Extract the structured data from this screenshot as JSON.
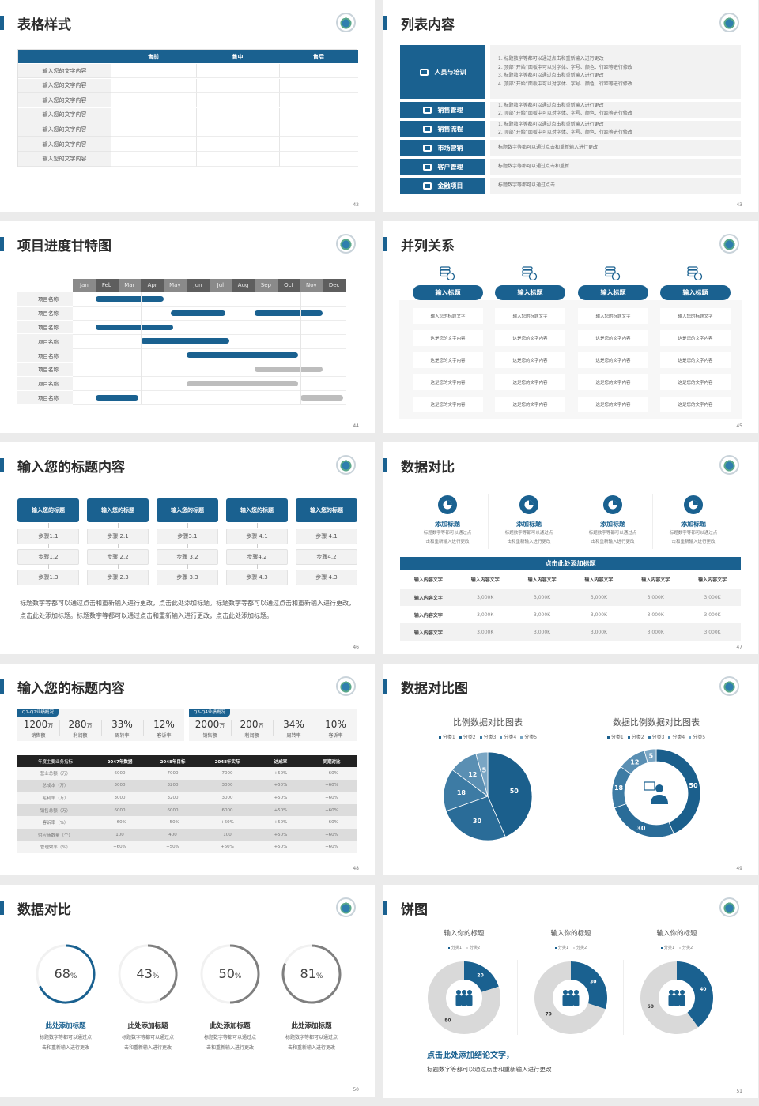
{
  "colors": {
    "accent": "#1a6190",
    "gray_bar": "#bdbdbd",
    "dark_header": "#222222"
  },
  "s42": {
    "title": "表格样式",
    "page": "42",
    "headers": [
      "",
      "售前",
      "售中",
      "售后"
    ],
    "rows": [
      "输入您的文字内容",
      "输入您的文字内容",
      "输入您的文字内容",
      "输入您的文字内容",
      "输入您的文字内容",
      "输入您的文字内容",
      "输入您的文字内容"
    ]
  },
  "s43": {
    "title": "列表内容",
    "page": "43",
    "items": [
      {
        "label": "人员与培训",
        "icon": "presentation-icon",
        "lines": [
          "1.   标题数字等都可以通过点击和重新输入进行更改",
          "2.   顶部“开始”面板中可以对字体、字号、颜色、行距等进行修改",
          "3.   标题数字等都可以通过点击和重新输入进行更改",
          "4.   顶部“开始”面板中可以对字体、字号、颜色、行距等进行修改"
        ]
      },
      {
        "label": "销售管理",
        "icon": "user-gear-icon",
        "lines": [
          "1.   标题数字等都可以通过点击和重新输入进行更改",
          "2.   顶部“开始”面板中可以对字体、字号、颜色、行距等进行修改"
        ]
      },
      {
        "label": "销售流程",
        "icon": "cycle-icon",
        "lines": [
          "1.   标题数字等都可以通过点击和重新输入进行更改",
          "2.   顶部“开始”面板中可以对字体、字号、颜色、行距等进行修改"
        ]
      },
      {
        "label": "市场营销",
        "icon": "bar-chart-icon",
        "lines": [
          "标题数字等都可以通过点击和重新输入进行更改"
        ]
      },
      {
        "label": "客户管理",
        "icon": "users-icon",
        "lines": [
          "标题数字等都可以通过点击和重新"
        ]
      },
      {
        "label": "金融项目",
        "icon": "money-hand-icon",
        "lines": [
          "标题数字等都可以通过点击"
        ]
      }
    ]
  },
  "s44": {
    "title": "项目进度甘特图",
    "page": "44",
    "months": [
      "Jan",
      "Feb",
      "Mar",
      "Apr",
      "May",
      "Jun",
      "Jul",
      "Aug",
      "Sep",
      "Oct",
      "Nov",
      "Dec"
    ],
    "tasks": [
      {
        "name": "项目名称",
        "bars": [
          {
            "start": 1,
            "end": 4,
            "status": "active"
          }
        ]
      },
      {
        "name": "项目名称",
        "bars": [
          {
            "start": 4.3,
            "end": 6.7,
            "status": "active"
          },
          {
            "start": 8,
            "end": 11,
            "status": "active"
          }
        ]
      },
      {
        "name": "项目名称",
        "bars": [
          {
            "start": 1,
            "end": 4.4,
            "status": "active"
          }
        ]
      },
      {
        "name": "项目名称",
        "bars": [
          {
            "start": 3,
            "end": 6.9,
            "status": "active"
          }
        ]
      },
      {
        "name": "项目名称",
        "bars": [
          {
            "start": 5,
            "end": 9.9,
            "status": "active"
          }
        ]
      },
      {
        "name": "项目名称",
        "bars": [
          {
            "start": 8,
            "end": 11,
            "status": "planned"
          }
        ]
      },
      {
        "name": "项目名称",
        "bars": [
          {
            "start": 5,
            "end": 9.9,
            "status": "planned"
          }
        ]
      },
      {
        "name": "项目名称",
        "bars": [
          {
            "start": 1,
            "end": 2.9,
            "status": "active"
          },
          {
            "start": 10,
            "end": 11.9,
            "status": "planned"
          }
        ]
      }
    ]
  },
  "s45": {
    "title": "并列关系",
    "page": "45",
    "columns": [
      {
        "title": "输入标题",
        "rows": [
          "输入您的标题文字",
          "这是您的文字内容",
          "这是您的文字内容",
          "这是您的文字内容",
          "这是您的文字内容"
        ]
      },
      {
        "title": "输入标题",
        "rows": [
          "输入您的标题文字",
          "这是您的文字内容",
          "这是您的文字内容",
          "这是您的文字内容",
          "这是您的文字内容"
        ]
      },
      {
        "title": "输入标题",
        "rows": [
          "输入您的标题文字",
          "这是您的文字内容",
          "这是您的文字内容",
          "这是您的文字内容",
          "这是您的文字内容"
        ]
      },
      {
        "title": "输入标题",
        "rows": [
          "输入您的标题文字",
          "这是您的文字内容",
          "这是您的文字内容",
          "这是您的文字内容",
          "这是您的文字内容"
        ]
      }
    ]
  },
  "s46": {
    "title": "输入您的标题内容",
    "page": "46",
    "columns": [
      {
        "title": "输入您的标题",
        "steps": [
          "步骤1.1",
          "步骤1.2",
          "步骤1.3"
        ]
      },
      {
        "title": "输入您的标题",
        "steps": [
          "步骤 2.1",
          "步骤 2.2",
          "步骤 2.3"
        ]
      },
      {
        "title": "输入您的标题",
        "steps": [
          "步骤3.1",
          "步骤 3.2",
          "步骤 3.3"
        ]
      },
      {
        "title": "输入您的标题",
        "steps": [
          "步骤 4.1",
          "步骤4.2",
          "步骤 4.3"
        ]
      },
      {
        "title": "输入您的标题",
        "steps": [
          "步骤 4.1",
          "步骤4.2",
          "步骤 4.3"
        ]
      }
    ],
    "paragraph": "标题数字等都可以通过点击和重新输入进行更改，点击此处添加标题。标题数字等都可以通过点击和重新输入进行更改，点击此处添加标题。标题数字等都可以通过点击和重新输入进行更改，点击此处添加标题。"
  },
  "s47": {
    "title": "数据对比",
    "page": "47",
    "features": [
      {
        "title": "添加标题",
        "desc1": "标题数字等都可以通过点",
        "desc2": "击和重新输入进行更改"
      },
      {
        "title": "添加标题",
        "desc1": "标题数字等都可以通过点",
        "desc2": "击和重新输入进行更改"
      },
      {
        "title": "添加标题",
        "desc1": "标题数字等都可以通过点",
        "desc2": "击和重新输入进行更改"
      },
      {
        "title": "添加标题",
        "desc1": "标题数字等都可以通过点",
        "desc2": "击和重新输入进行更改"
      }
    ],
    "table_title": "点击此处添加标题",
    "headers": [
      "输入内容文字",
      "输入内容文字",
      "输入内容文字",
      "输入内容文字",
      "输入内容文字",
      "输入内容文字"
    ],
    "rows": [
      [
        "输入内容文字",
        "3,000K",
        "3,000K",
        "3,000K",
        "3,000K",
        "3,000K"
      ],
      [
        "输入内容文字",
        "3,000K",
        "3,000K",
        "3,000K",
        "3,000K",
        "3,000K"
      ],
      [
        "输入内容文字",
        "3,000K",
        "3,000K",
        "3,000K",
        "3,000K",
        "3,000K"
      ]
    ]
  },
  "s48": {
    "title": "输入您的标题内容",
    "page": "48",
    "groups": [
      {
        "tag": "Q1-Q2业绩概况",
        "kpis": [
          {
            "value": "1200",
            "unit": "万",
            "label": "销售额"
          },
          {
            "value": "280",
            "unit": "万",
            "label": "利润额"
          },
          {
            "value": "33%",
            "unit": "",
            "label": "周转率"
          },
          {
            "value": "12%",
            "unit": "",
            "label": "客诉率"
          }
        ]
      },
      {
        "tag": "Q3-Q4业绩概况",
        "kpis": [
          {
            "value": "2000",
            "unit": "万",
            "label": "销售额"
          },
          {
            "value": "200",
            "unit": "万",
            "label": "利润额"
          },
          {
            "value": "34%",
            "unit": "",
            "label": "周转率"
          },
          {
            "value": "10%",
            "unit": "",
            "label": "客诉率"
          }
        ]
      }
    ],
    "headers": [
      "年度主要业务指标",
      "2047年数据",
      "2048年目标",
      "2048年实际",
      "达成率",
      "同期对比"
    ],
    "rows": [
      [
        "营业总额（万）",
        "6000",
        "7000",
        "7000",
        "+50%",
        "+60%"
      ],
      [
        "总成本（万）",
        "3000",
        "3200",
        "3000",
        "+50%",
        "+60%"
      ],
      [
        "毛利率（万）",
        "3000",
        "3200",
        "3000",
        "+50%",
        "+60%"
      ],
      [
        "销售总额（万）",
        "6000",
        "6000",
        "6000",
        "+50%",
        "+60%"
      ],
      [
        "客诉率（%）",
        "+60%",
        "+50%",
        "+60%",
        "+50%",
        "+60%"
      ],
      [
        "供应商数量（个）",
        "100",
        "400",
        "100",
        "+50%",
        "+60%"
      ],
      [
        "管理效率（%）",
        "+60%",
        "+50%",
        "+60%",
        "+50%",
        "+60%"
      ]
    ]
  },
  "s49": {
    "title": "数据对比图",
    "page": "49"
  },
  "s50": {
    "title": "数据对比",
    "page": "50",
    "rings": [
      {
        "value": 68,
        "label": "68",
        "unit": "%",
        "title": "此处添加标题",
        "desc1": "标题数字等都可以通过点",
        "desc2": "击和重新输入进行更改",
        "highlight": true
      },
      {
        "value": 43,
        "label": "43",
        "unit": "%",
        "title": "此处添加标题",
        "desc1": "标题数字等都可以通过点",
        "desc2": "击和重新输入进行更改",
        "highlight": false
      },
      {
        "value": 50,
        "label": "50",
        "unit": "%",
        "title": "此处添加标题",
        "desc1": "标题数字等都可以通过点",
        "desc2": "击和重新输入进行更改",
        "highlight": false
      },
      {
        "value": 81,
        "label": "81",
        "unit": "%",
        "title": "此处添加标题",
        "desc1": "标题数字等都可以通过点",
        "desc2": "击和重新输入进行更改",
        "highlight": false
      }
    ]
  },
  "s51": {
    "title": "饼图",
    "page": "51",
    "conclusion": "点击此处添加结论文字，",
    "conclusion_desc": "标题数字等都可以通过点击和重新输入进行更改"
  },
  "chart_data": [
    {
      "type": "pie",
      "title": "比例数据对比图表",
      "categories": [
        "分类1",
        "分类2",
        "分类3",
        "分类4",
        "分类5"
      ],
      "values": [
        50,
        30,
        18,
        12,
        5
      ],
      "legend": "top",
      "colors": [
        "#1b5f8c",
        "#2a6c98",
        "#3d7ba4",
        "#5a8fb3",
        "#7aa6c4"
      ]
    },
    {
      "type": "pie",
      "subtype": "donut",
      "title": "数据比例数据对比图表",
      "categories": [
        "分类1",
        "分类2",
        "分类3",
        "分类4",
        "分类5"
      ],
      "values": [
        50,
        30,
        18,
        12,
        5
      ],
      "legend": "top",
      "colors": [
        "#1b5f8c",
        "#2a6c98",
        "#3d7ba4",
        "#5a8fb3",
        "#7aa6c4"
      ],
      "center_icon": "consultant-icon"
    },
    {
      "type": "pie",
      "subtype": "donut",
      "title": "输入你的标题",
      "categories": [
        "分类1",
        "分类2"
      ],
      "values": [
        20,
        80
      ],
      "legend": "top",
      "colors": [
        "#1a6190",
        "#d9d9d9"
      ],
      "center_icon": "team-icon"
    },
    {
      "type": "pie",
      "subtype": "donut",
      "title": "输入你的标题",
      "categories": [
        "分类1",
        "分类2"
      ],
      "values": [
        30,
        70
      ],
      "legend": "top",
      "colors": [
        "#1a6190",
        "#d9d9d9"
      ],
      "center_icon": "team-icon"
    },
    {
      "type": "pie",
      "subtype": "donut",
      "title": "输入你的标题",
      "categories": [
        "分类1",
        "分类2"
      ],
      "values": [
        40,
        60
      ],
      "legend": "top",
      "colors": [
        "#1a6190",
        "#d9d9d9"
      ],
      "center_icon": "team-icon"
    }
  ]
}
